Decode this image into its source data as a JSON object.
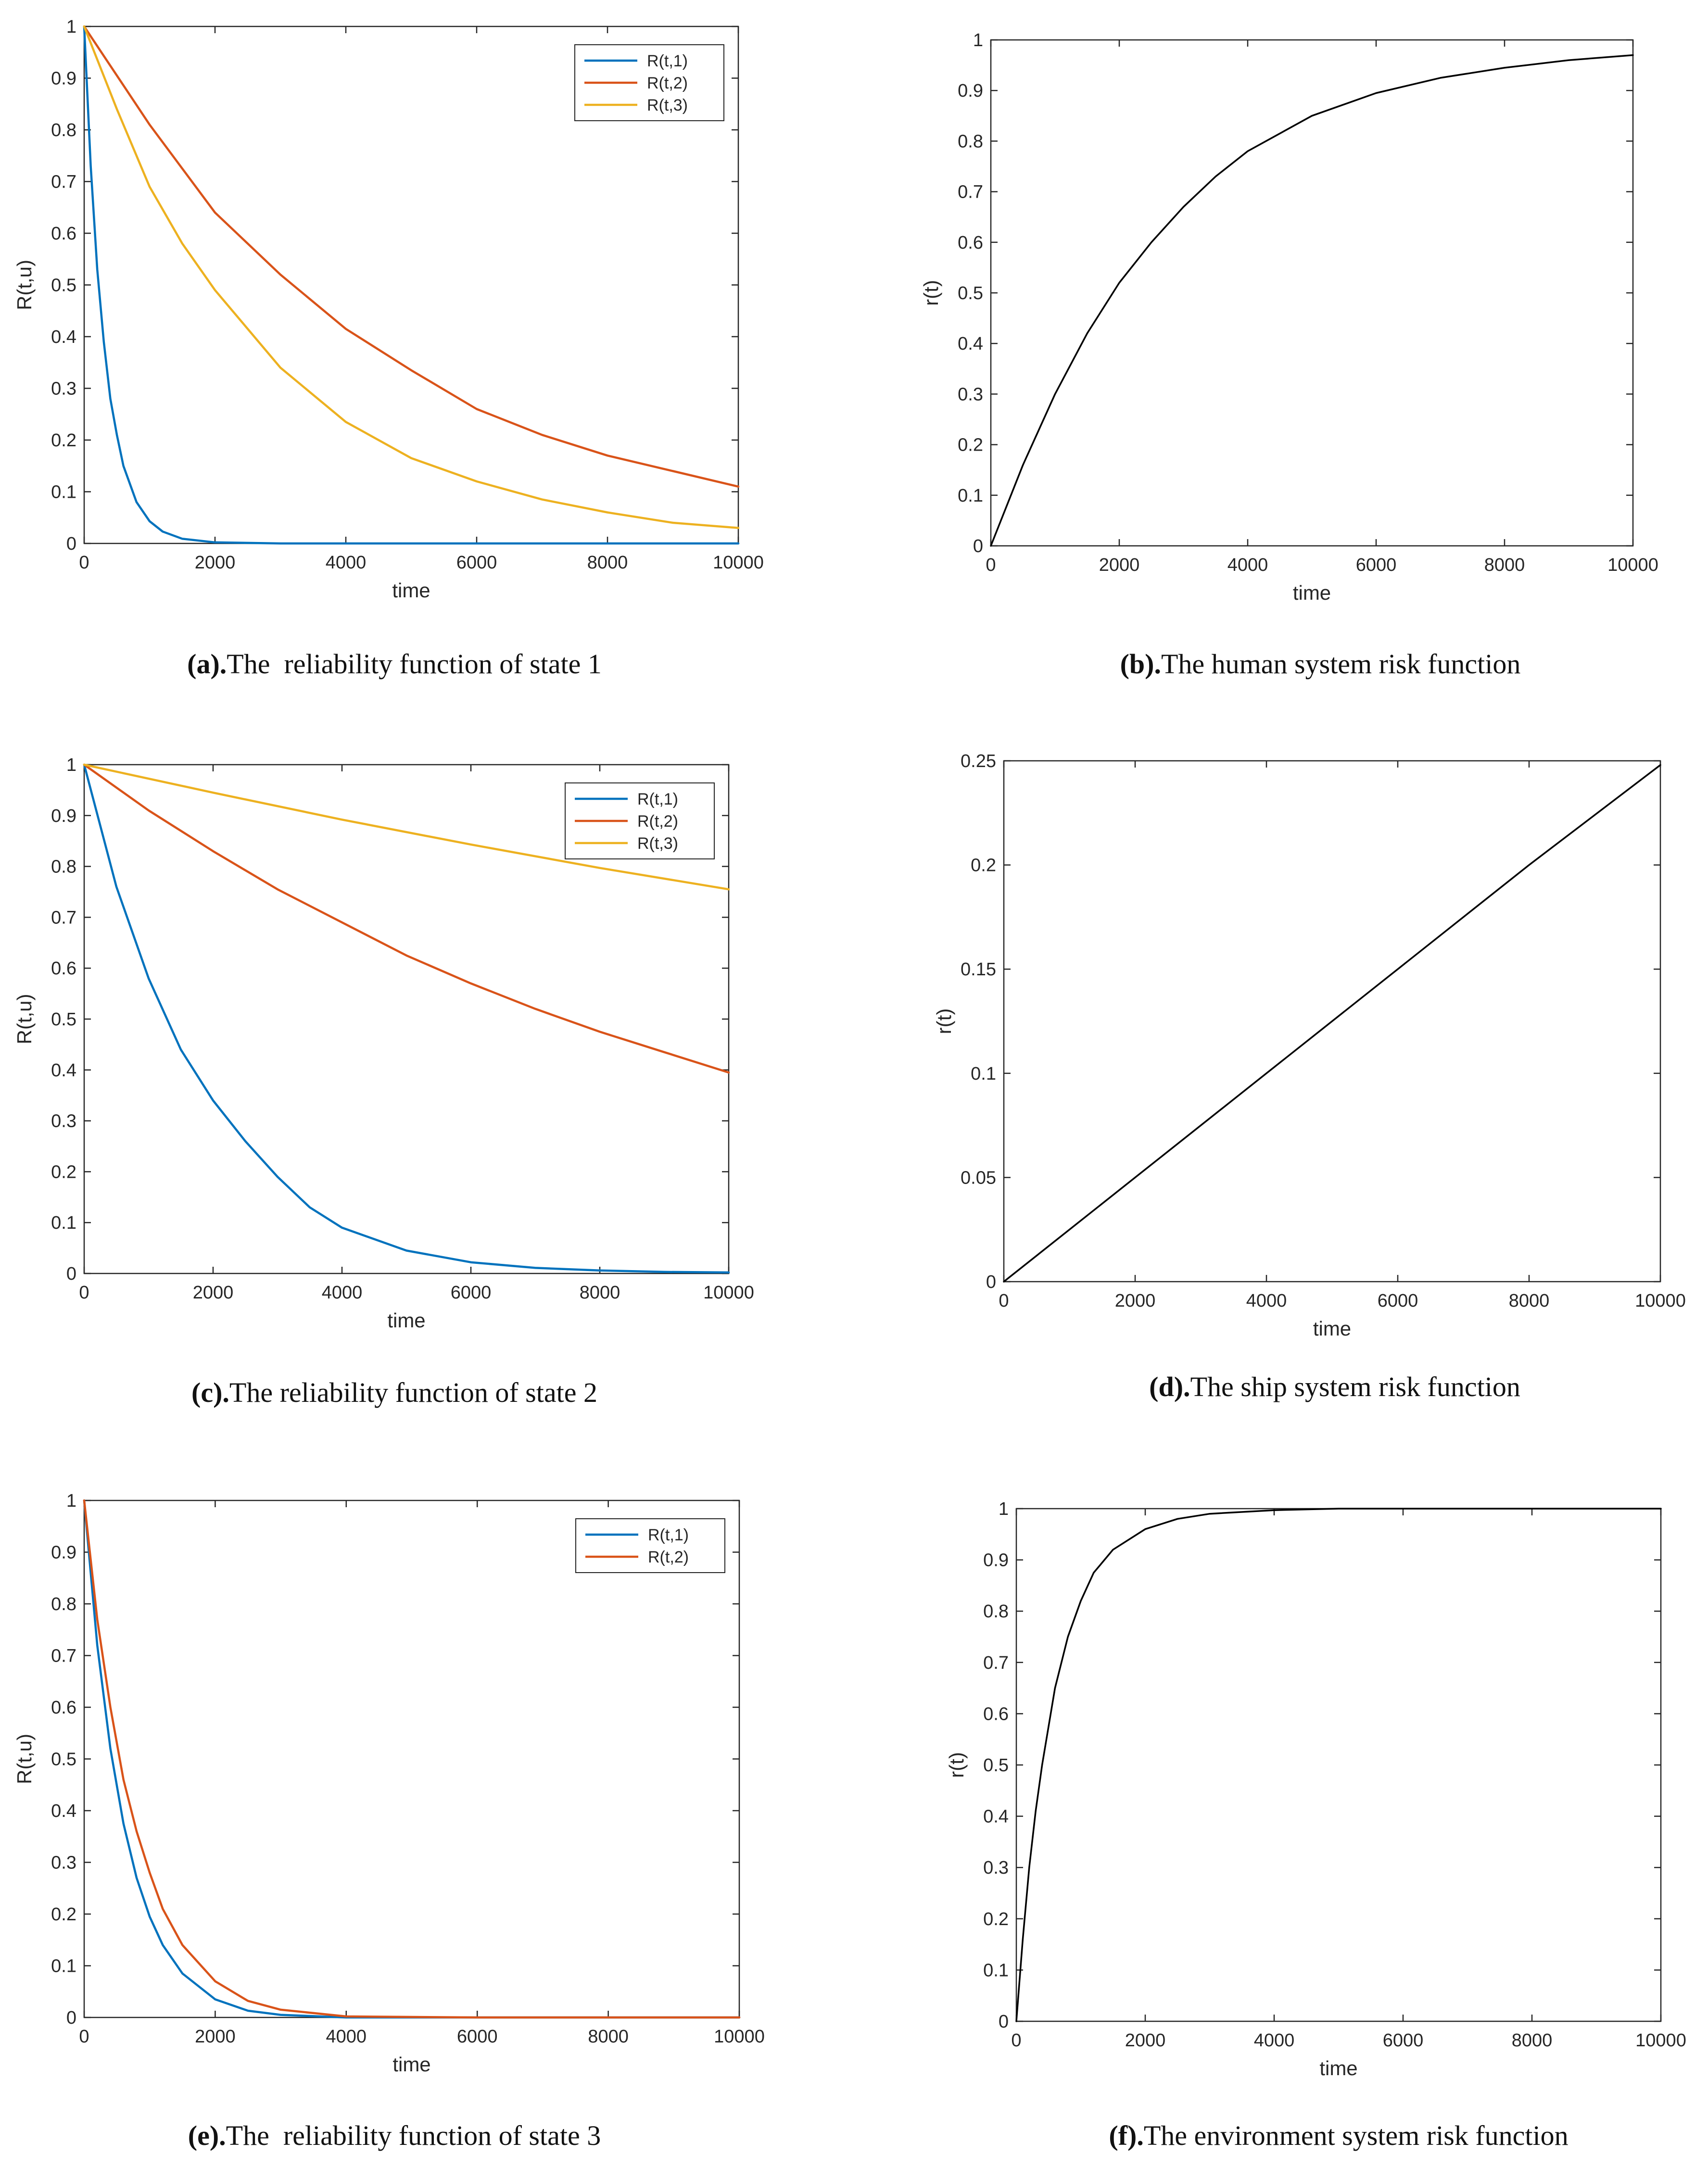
{
  "colors": {
    "series1": "#0072BD",
    "series2": "#D95319",
    "series3": "#EDB120",
    "risk": "#000000",
    "axis": "#262626"
  },
  "chart_data": [
    {
      "id": "a",
      "type": "line",
      "caption_prefix": "(a).",
      "caption_text": "The  reliability function of state 1",
      "xlabel": "time",
      "ylabel": "R(t,u)",
      "xlim": [
        0,
        10000
      ],
      "ylim": [
        0,
        1
      ],
      "xticks": [
        "0",
        "2000",
        "4000",
        "6000",
        "8000",
        "10000"
      ],
      "yticks": [
        "0",
        "0.1",
        "0.2",
        "0.3",
        "0.4",
        "0.5",
        "0.6",
        "0.7",
        "0.8",
        "0.9",
        "1"
      ],
      "legend": true,
      "series": [
        {
          "name": "R(t,1)",
          "color_key": "series1",
          "x": [
            0,
            100,
            200,
            300,
            400,
            500,
            600,
            800,
            1000,
            1200,
            1500,
            2000,
            3000,
            4000,
            6000,
            8000,
            10000
          ],
          "values": [
            1,
            0.73,
            0.53,
            0.39,
            0.28,
            0.21,
            0.15,
            0.08,
            0.043,
            0.023,
            0.009,
            0.002,
            0,
            0,
            0,
            0,
            0
          ]
        },
        {
          "name": "R(t,2)",
          "color_key": "series2",
          "x": [
            0,
            1000,
            2000,
            3000,
            4000,
            5000,
            6000,
            7000,
            8000,
            9000,
            10000
          ],
          "values": [
            1,
            0.81,
            0.64,
            0.52,
            0.415,
            0.335,
            0.26,
            0.21,
            0.17,
            0.14,
            0.11
          ]
        },
        {
          "name": "R(t,3)",
          "color_key": "series3",
          "x": [
            0,
            500,
            1000,
            1500,
            2000,
            3000,
            4000,
            5000,
            6000,
            7000,
            8000,
            9000,
            10000
          ],
          "values": [
            1,
            0.84,
            0.69,
            0.58,
            0.49,
            0.34,
            0.235,
            0.165,
            0.12,
            0.085,
            0.06,
            0.04,
            0.03
          ]
        }
      ]
    },
    {
      "id": "b",
      "type": "line",
      "caption_prefix": "(b).",
      "caption_text": "The human system risk function",
      "xlabel": "time",
      "ylabel": "r(t)",
      "xlim": [
        0,
        10000
      ],
      "ylim": [
        0,
        1
      ],
      "xticks": [
        "0",
        "2000",
        "4000",
        "6000",
        "8000",
        "10000"
      ],
      "yticks": [
        "0",
        "0.1",
        "0.2",
        "0.3",
        "0.4",
        "0.5",
        "0.6",
        "0.7",
        "0.8",
        "0.9",
        "1"
      ],
      "legend": false,
      "series": [
        {
          "name": "r(t)",
          "color_key": "risk",
          "x": [
            0,
            500,
            1000,
            1500,
            2000,
            2500,
            3000,
            3500,
            4000,
            5000,
            6000,
            7000,
            8000,
            9000,
            10000
          ],
          "values": [
            0,
            0.16,
            0.3,
            0.42,
            0.52,
            0.6,
            0.67,
            0.73,
            0.78,
            0.85,
            0.895,
            0.925,
            0.945,
            0.96,
            0.97
          ]
        }
      ]
    },
    {
      "id": "c",
      "type": "line",
      "caption_prefix": "(c).",
      "caption_text": "The reliability function of state 2",
      "xlabel": "time",
      "ylabel": "R(t,u)",
      "xlim": [
        0,
        10000
      ],
      "ylim": [
        0,
        1
      ],
      "xticks": [
        "0",
        "2000",
        "4000",
        "6000",
        "8000",
        "10000"
      ],
      "yticks": [
        "0",
        "0.1",
        "0.2",
        "0.3",
        "0.4",
        "0.5",
        "0.6",
        "0.7",
        "0.8",
        "0.9",
        "1"
      ],
      "legend": true,
      "series": [
        {
          "name": "R(t,1)",
          "color_key": "series1",
          "x": [
            0,
            500,
            1000,
            1500,
            2000,
            2500,
            3000,
            3500,
            4000,
            5000,
            6000,
            7000,
            8000,
            9000,
            10000
          ],
          "values": [
            1,
            0.76,
            0.58,
            0.44,
            0.34,
            0.26,
            0.19,
            0.13,
            0.09,
            0.045,
            0.022,
            0.011,
            0.006,
            0.003,
            0.002
          ]
        },
        {
          "name": "R(t,2)",
          "color_key": "series2",
          "x": [
            0,
            1000,
            2000,
            3000,
            4000,
            5000,
            6000,
            7000,
            8000,
            9000,
            10000
          ],
          "values": [
            1,
            0.91,
            0.83,
            0.755,
            0.69,
            0.625,
            0.57,
            0.52,
            0.475,
            0.435,
            0.395
          ]
        },
        {
          "name": "R(t,3)",
          "color_key": "series3",
          "x": [
            0,
            2000,
            4000,
            6000,
            8000,
            10000
          ],
          "values": [
            1,
            0.945,
            0.892,
            0.843,
            0.797,
            0.755
          ]
        }
      ]
    },
    {
      "id": "d",
      "type": "line",
      "caption_prefix": "(d).",
      "caption_text": "The ship system risk function",
      "xlabel": "time",
      "ylabel": "r(t)",
      "xlim": [
        0,
        10000
      ],
      "ylim": [
        0,
        0.25
      ],
      "xticks": [
        "0",
        "2000",
        "4000",
        "6000",
        "8000",
        "10000"
      ],
      "yticks": [
        "0",
        "0.05",
        "0.1",
        "0.15",
        "0.2",
        "0.25"
      ],
      "legend": false,
      "series": [
        {
          "name": "r(t)",
          "color_key": "risk",
          "x": [
            0,
            2000,
            4000,
            6000,
            8000,
            10000
          ],
          "values": [
            0,
            0.05,
            0.1,
            0.15,
            0.2,
            0.248
          ]
        }
      ]
    },
    {
      "id": "e",
      "type": "line",
      "caption_prefix": "(e).",
      "caption_text": "The  reliability function of state 3",
      "xlabel": "time",
      "ylabel": "R(t,u)",
      "xlim": [
        0,
        10000
      ],
      "ylim": [
        0,
        1
      ],
      "xticks": [
        "0",
        "2000",
        "4000",
        "6000",
        "8000",
        "10000"
      ],
      "yticks": [
        "0",
        "0.1",
        "0.2",
        "0.3",
        "0.4",
        "0.5",
        "0.6",
        "0.7",
        "0.8",
        "0.9",
        "1"
      ],
      "legend": true,
      "series": [
        {
          "name": "R(t,1)",
          "color_key": "series1",
          "x": [
            0,
            200,
            400,
            600,
            800,
            1000,
            1200,
            1500,
            2000,
            2500,
            3000,
            4000,
            6000,
            8000,
            10000
          ],
          "values": [
            1,
            0.72,
            0.52,
            0.375,
            0.27,
            0.195,
            0.14,
            0.085,
            0.035,
            0.013,
            0.005,
            0,
            0,
            0,
            0
          ]
        },
        {
          "name": "R(t,2)",
          "color_key": "series2",
          "x": [
            0,
            200,
            400,
            600,
            800,
            1000,
            1200,
            1500,
            2000,
            2500,
            3000,
            4000,
            6000,
            8000,
            10000
          ],
          "values": [
            1,
            0.77,
            0.6,
            0.46,
            0.36,
            0.28,
            0.21,
            0.14,
            0.07,
            0.032,
            0.015,
            0.002,
            0,
            0,
            0
          ]
        }
      ]
    },
    {
      "id": "f",
      "type": "line",
      "caption_prefix": "(f).",
      "caption_text": "The environment system risk function",
      "xlabel": "time",
      "ylabel": "r(t)",
      "xlim": [
        0,
        10000
      ],
      "ylim": [
        0,
        1
      ],
      "xticks": [
        "0",
        "2000",
        "4000",
        "6000",
        "8000",
        "10000"
      ],
      "yticks": [
        "0",
        "0.1",
        "0.2",
        "0.3",
        "0.4",
        "0.5",
        "0.6",
        "0.7",
        "0.8",
        "0.9",
        "1"
      ],
      "legend": false,
      "series": [
        {
          "name": "r(t)",
          "color_key": "risk",
          "x": [
            0,
            100,
            200,
            300,
            400,
            600,
            800,
            1000,
            1200,
            1500,
            2000,
            2500,
            3000,
            4000,
            5000,
            6000,
            8000,
            10000
          ],
          "values": [
            0,
            0.16,
            0.3,
            0.41,
            0.5,
            0.65,
            0.75,
            0.82,
            0.875,
            0.92,
            0.96,
            0.98,
            0.99,
            0.997,
            1,
            1,
            1,
            1
          ]
        }
      ]
    }
  ]
}
